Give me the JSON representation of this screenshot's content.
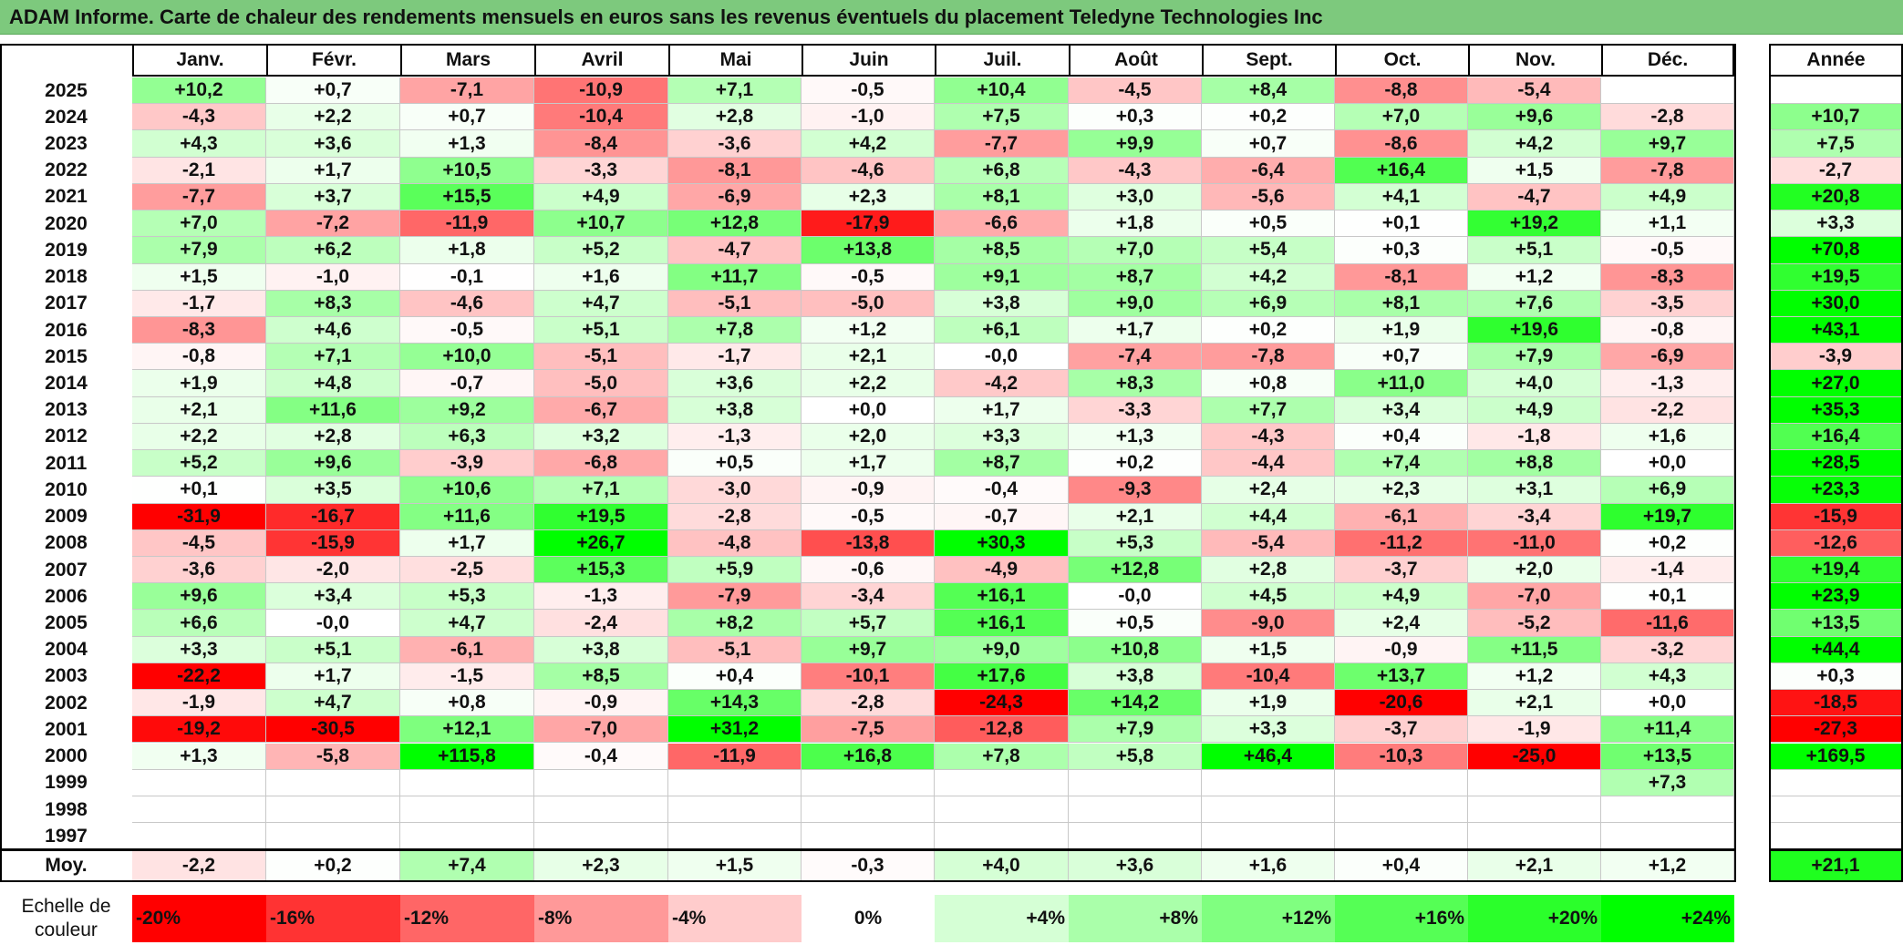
{
  "title": "ADAM Informe. Carte de chaleur des rendements mensuels en euros sans les revenus éventuels du placement Teledyne Technologies Inc",
  "chart_data": {
    "type": "heatmap",
    "title": "ADAM Informe. Carte de chaleur des rendements mensuels en euros sans les revenus éventuels du placement Teledyne Technologies Inc",
    "months": [
      "Janv.",
      "Févr.",
      "Mars",
      "Avril",
      "Mai",
      "Juin",
      "Juil.",
      "Août",
      "Sept.",
      "Oct.",
      "Nov.",
      "Déc."
    ],
    "year_header": "Année",
    "rows": [
      {
        "year": "2025",
        "values": [
          "+10,2",
          "+0,7",
          "-7,1",
          "-10,9",
          "+7,1",
          "-0,5",
          "+10,4",
          "-4,5",
          "+8,4",
          "-8,8",
          "-5,4",
          ""
        ],
        "annual": ""
      },
      {
        "year": "2024",
        "values": [
          "-4,3",
          "+2,2",
          "+0,7",
          "-10,4",
          "+2,8",
          "-1,0",
          "+7,5",
          "+0,3",
          "+0,2",
          "+7,0",
          "+9,6",
          "-2,8"
        ],
        "annual": "+10,7"
      },
      {
        "year": "2023",
        "values": [
          "+4,3",
          "+3,6",
          "+1,3",
          "-8,4",
          "-3,6",
          "+4,2",
          "-7,7",
          "+9,9",
          "+0,7",
          "-8,6",
          "+4,2",
          "+9,7"
        ],
        "annual": "+7,5"
      },
      {
        "year": "2022",
        "values": [
          "-2,1",
          "+1,7",
          "+10,5",
          "-3,3",
          "-8,1",
          "-4,6",
          "+6,8",
          "-4,3",
          "-6,4",
          "+16,4",
          "+1,5",
          "-7,8"
        ],
        "annual": "-2,7"
      },
      {
        "year": "2021",
        "values": [
          "-7,7",
          "+3,7",
          "+15,5",
          "+4,9",
          "-6,9",
          "+2,3",
          "+8,1",
          "+3,0",
          "-5,6",
          "+4,1",
          "-4,7",
          "+4,9"
        ],
        "annual": "+20,8"
      },
      {
        "year": "2020",
        "values": [
          "+7,0",
          "-7,2",
          "-11,9",
          "+10,7",
          "+12,8",
          "-17,9",
          "-6,6",
          "+1,8",
          "+0,5",
          "+0,1",
          "+19,2",
          "+1,1"
        ],
        "annual": "+3,3"
      },
      {
        "year": "2019",
        "values": [
          "+7,9",
          "+6,2",
          "+1,8",
          "+5,2",
          "-4,7",
          "+13,8",
          "+8,5",
          "+7,0",
          "+5,4",
          "+0,3",
          "+5,1",
          "-0,5"
        ],
        "annual": "+70,8"
      },
      {
        "year": "2018",
        "values": [
          "+1,5",
          "-1,0",
          "-0,1",
          "+1,6",
          "+11,7",
          "-0,5",
          "+9,1",
          "+8,7",
          "+4,2",
          "-8,1",
          "+1,2",
          "-8,3"
        ],
        "annual": "+19,5"
      },
      {
        "year": "2017",
        "values": [
          "-1,7",
          "+8,3",
          "-4,6",
          "+4,7",
          "-5,1",
          "-5,0",
          "+3,8",
          "+9,0",
          "+6,9",
          "+8,1",
          "+7,6",
          "-3,5"
        ],
        "annual": "+30,0"
      },
      {
        "year": "2016",
        "values": [
          "-8,3",
          "+4,6",
          "-0,5",
          "+5,1",
          "+7,8",
          "+1,2",
          "+6,1",
          "+1,7",
          "+0,2",
          "+1,9",
          "+19,6",
          "-0,8"
        ],
        "annual": "+43,1"
      },
      {
        "year": "2015",
        "values": [
          "-0,8",
          "+7,1",
          "+10,0",
          "-5,1",
          "-1,7",
          "+2,1",
          "-0,0",
          "-7,4",
          "-7,8",
          "+0,7",
          "+7,9",
          "-6,9"
        ],
        "annual": "-3,9"
      },
      {
        "year": "2014",
        "values": [
          "+1,9",
          "+4,8",
          "-0,7",
          "-5,0",
          "+3,6",
          "+2,2",
          "-4,2",
          "+8,3",
          "+0,8",
          "+11,0",
          "+4,0",
          "-1,3"
        ],
        "annual": "+27,0"
      },
      {
        "year": "2013",
        "values": [
          "+2,1",
          "+11,6",
          "+9,2",
          "-6,7",
          "+3,8",
          "+0,0",
          "+1,7",
          "-3,3",
          "+7,7",
          "+3,4",
          "+4,9",
          "-2,2"
        ],
        "annual": "+35,3"
      },
      {
        "year": "2012",
        "values": [
          "+2,2",
          "+2,8",
          "+6,3",
          "+3,2",
          "-1,3",
          "+2,0",
          "+3,3",
          "+1,3",
          "-4,3",
          "+0,4",
          "-1,8",
          "+1,6"
        ],
        "annual": "+16,4"
      },
      {
        "year": "2011",
        "values": [
          "+5,2",
          "+9,6",
          "-3,9",
          "-6,8",
          "+0,5",
          "+1,7",
          "+8,7",
          "+0,2",
          "-4,4",
          "+7,4",
          "+8,8",
          "+0,0"
        ],
        "annual": "+28,5"
      },
      {
        "year": "2010",
        "values": [
          "+0,1",
          "+3,5",
          "+10,6",
          "+7,1",
          "-3,0",
          "-0,9",
          "-0,4",
          "-9,3",
          "+2,4",
          "+2,3",
          "+3,1",
          "+6,9"
        ],
        "annual": "+23,3"
      },
      {
        "year": "2009",
        "values": [
          "-31,9",
          "-16,7",
          "+11,6",
          "+19,5",
          "-2,8",
          "-0,5",
          "-0,7",
          "+2,1",
          "+4,4",
          "-6,1",
          "-3,4",
          "+19,7"
        ],
        "annual": "-15,9"
      },
      {
        "year": "2008",
        "values": [
          "-4,5",
          "-15,9",
          "+1,7",
          "+26,7",
          "-4,8",
          "-13,8",
          "+30,3",
          "+5,3",
          "-5,4",
          "-11,2",
          "-11,0",
          "+0,2"
        ],
        "annual": "-12,6"
      },
      {
        "year": "2007",
        "values": [
          "-3,6",
          "-2,0",
          "-2,5",
          "+15,3",
          "+5,9",
          "-0,6",
          "-4,9",
          "+12,8",
          "+2,8",
          "-3,7",
          "+2,0",
          "-1,4"
        ],
        "annual": "+19,4"
      },
      {
        "year": "2006",
        "values": [
          "+9,6",
          "+3,4",
          "+5,3",
          "-1,3",
          "-7,9",
          "-3,4",
          "+16,1",
          "-0,0",
          "+4,5",
          "+4,9",
          "-7,0",
          "+0,1"
        ],
        "annual": "+23,9"
      },
      {
        "year": "2005",
        "values": [
          "+6,6",
          "-0,0",
          "+4,7",
          "-2,4",
          "+8,2",
          "+5,7",
          "+16,1",
          "+0,5",
          "-9,0",
          "+2,4",
          "-5,2",
          "-11,6"
        ],
        "annual": "+13,5"
      },
      {
        "year": "2004",
        "values": [
          "+3,3",
          "+5,1",
          "-6,1",
          "+3,8",
          "-5,1",
          "+9,7",
          "+9,0",
          "+10,8",
          "+1,5",
          "-0,9",
          "+11,5",
          "-3,2"
        ],
        "annual": "+44,4"
      },
      {
        "year": "2003",
        "values": [
          "-22,2",
          "+1,7",
          "-1,5",
          "+8,5",
          "+0,4",
          "-10,1",
          "+17,6",
          "+3,8",
          "-10,4",
          "+13,7",
          "+1,2",
          "+4,3"
        ],
        "annual": "+0,3"
      },
      {
        "year": "2002",
        "values": [
          "-1,9",
          "+4,7",
          "+0,8",
          "-0,9",
          "+14,3",
          "-2,8",
          "-24,3",
          "+14,2",
          "+1,9",
          "-20,6",
          "+2,1",
          "+0,0"
        ],
        "annual": "-18,5"
      },
      {
        "year": "2001",
        "values": [
          "-19,2",
          "-30,5",
          "+12,1",
          "-7,0",
          "+31,2",
          "-7,5",
          "-12,8",
          "+7,9",
          "+3,3",
          "-3,7",
          "-1,9",
          "+11,4"
        ],
        "annual": "-27,3"
      },
      {
        "year": "2000",
        "values": [
          "+1,3",
          "-5,8",
          "+115,8",
          "-0,4",
          "-11,9",
          "+16,8",
          "+7,8",
          "+5,8",
          "+46,4",
          "-10,3",
          "-25,0",
          "+13,5"
        ],
        "annual": "+169,5"
      },
      {
        "year": "1999",
        "values": [
          "",
          "",
          "",
          "",
          "",
          "",
          "",
          "",
          "",
          "",
          "",
          "+7,3"
        ],
        "annual": ""
      },
      {
        "year": "1998",
        "values": [
          "",
          "",
          "",
          "",
          "",
          "",
          "",
          "",
          "",
          "",
          "",
          ""
        ],
        "annual": ""
      },
      {
        "year": "1997",
        "values": [
          "",
          "",
          "",
          "",
          "",
          "",
          "",
          "",
          "",
          "",
          "",
          ""
        ],
        "annual": ""
      }
    ],
    "average": {
      "label": "Moy.",
      "values": [
        "-2,2",
        "+0,2",
        "+7,4",
        "+2,3",
        "+1,5",
        "-0,3",
        "+4,0",
        "+3,6",
        "+1,6",
        "+0,4",
        "+2,1",
        "+1,2"
      ],
      "annual": "+21,1"
    },
    "scale": {
      "label": "Echelle de couleur",
      "labels": [
        "-20%",
        "-16%",
        "-12%",
        "-8%",
        "-4%",
        "0%",
        "+4%",
        "+8%",
        "+12%",
        "+16%",
        "+20%",
        "+24%"
      ],
      "values": [
        -20,
        -16,
        -12,
        -8,
        -4,
        0,
        4,
        8,
        12,
        16,
        20,
        24
      ]
    },
    "colors": {
      "negative_max": "#ff0000",
      "neutral": "#ffffff",
      "positive_max": "#00ff00",
      "title_bar": "#7dc97d"
    }
  }
}
